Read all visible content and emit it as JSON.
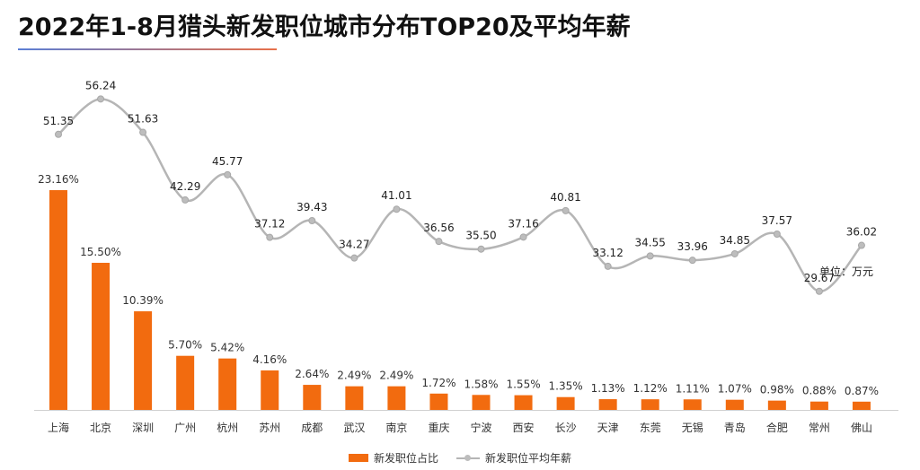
{
  "title": "2022年1-8月猎头新发职位城市分布TOP20及平均年薪",
  "unit_label": "单位：万元",
  "chart_data": {
    "type": "bar",
    "title": "2022年1-8月猎头新发职位城市分布TOP20及平均年薪",
    "categories": [
      "上海",
      "北京",
      "深圳",
      "广州",
      "杭州",
      "苏州",
      "成都",
      "武汉",
      "南京",
      "重庆",
      "宁波",
      "西安",
      "长沙",
      "天津",
      "东莞",
      "无锡",
      "青岛",
      "合肥",
      "常州",
      "佛山"
    ],
    "series": [
      {
        "name": "新发职位占比",
        "type": "bar",
        "values": [
          23.16,
          15.5,
          10.39,
          5.7,
          5.42,
          4.16,
          2.64,
          2.49,
          2.49,
          1.72,
          1.58,
          1.55,
          1.35,
          1.13,
          1.12,
          1.11,
          1.07,
          0.98,
          0.88,
          0.87
        ],
        "labels": [
          "23.16%",
          "15.50%",
          "10.39%",
          "5.70%",
          "5.42%",
          "4.16%",
          "2.64%",
          "2.49%",
          "2.49%",
          "1.72%",
          "1.58%",
          "1.55%",
          "1.35%",
          "1.13%",
          "1.12%",
          "1.11%",
          "1.07%",
          "0.98%",
          "0.88%",
          "0.87%"
        ],
        "color": "#f26b0f"
      },
      {
        "name": "新发职位平均年薪",
        "type": "line",
        "values": [
          51.35,
          56.24,
          51.63,
          42.29,
          45.77,
          37.12,
          39.43,
          34.27,
          41.01,
          36.56,
          35.5,
          37.16,
          40.81,
          33.12,
          34.55,
          33.96,
          34.85,
          37.57,
          29.67,
          36.02
        ],
        "labels": [
          "51.35",
          "56.24",
          "51.63",
          "42.29",
          "45.77",
          "37.12",
          "39.43",
          "34.27",
          "41.01",
          "36.56",
          "35.50",
          "37.16",
          "40.81",
          "33.12",
          "34.55",
          "33.96",
          "34.85",
          "37.57",
          "29.67",
          "36.02"
        ],
        "color": "#b5b5b5"
      }
    ],
    "legend": "bottom-center",
    "grid": false
  }
}
